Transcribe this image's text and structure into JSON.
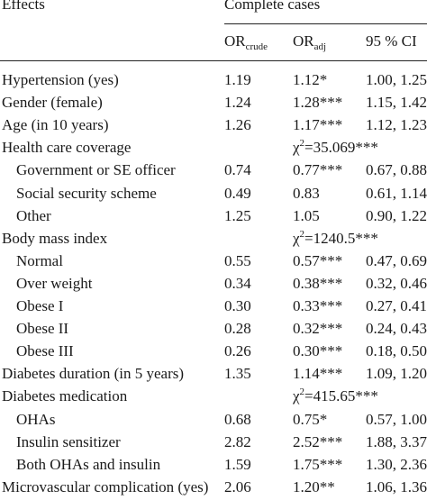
{
  "header": {
    "effects": "Effects",
    "complete_cases": "Complete cases",
    "or_crude_main": "OR",
    "or_crude_sub": "crude",
    "or_adj_main": "OR",
    "or_adj_sub": "adj",
    "ci": "95 % CI"
  },
  "rows": [
    {
      "label": "Hypertension (yes)",
      "indent": false,
      "crude": "1.19",
      "adj": "1.12*",
      "ci": "1.00, 1.25"
    },
    {
      "label": "Gender (female)",
      "indent": false,
      "crude": "1.24",
      "adj": "1.28***",
      "ci": "1.15, 1.42"
    },
    {
      "label": "Age (in 10 years)",
      "indent": false,
      "crude": "1.26",
      "adj": "1.17***",
      "ci": "1.12, 1.23"
    },
    {
      "label": "Health care coverage",
      "indent": false,
      "chi_pre": "χ",
      "chi_sup": "2",
      "chi_post": "=35.069***"
    },
    {
      "label": "Government or SE officer",
      "indent": true,
      "crude": "0.74",
      "adj": "0.77***",
      "ci": "0.67, 0.88"
    },
    {
      "label": "Social security scheme",
      "indent": true,
      "crude": "0.49",
      "adj": "0.83",
      "ci": "0.61, 1.14"
    },
    {
      "label": "Other",
      "indent": true,
      "crude": "1.25",
      "adj": "1.05",
      "ci": "0.90, 1.22"
    },
    {
      "label": "Body mass index",
      "indent": false,
      "chi_pre": "χ",
      "chi_sup": "2",
      "chi_post": "=1240.5***"
    },
    {
      "label": "Normal",
      "indent": true,
      "crude": "0.55",
      "adj": "0.57***",
      "ci": "0.47, 0.69"
    },
    {
      "label": "Over weight",
      "indent": true,
      "crude": "0.34",
      "adj": "0.38***",
      "ci": "0.32, 0.46"
    },
    {
      "label": "Obese I",
      "indent": true,
      "crude": "0.30",
      "adj": "0.33***",
      "ci": "0.27, 0.41"
    },
    {
      "label": "Obese II",
      "indent": true,
      "crude": "0.28",
      "adj": "0.32***",
      "ci": "0.24, 0.43"
    },
    {
      "label": "Obese III",
      "indent": true,
      "crude": "0.26",
      "adj": "0.30***",
      "ci": "0.18, 0.50"
    },
    {
      "label": "Diabetes duration (in 5 years)",
      "indent": false,
      "crude": "1.35",
      "adj": "1.14***",
      "ci": "1.09, 1.20"
    },
    {
      "label": "Diabetes medication",
      "indent": false,
      "chi_pre": "χ",
      "chi_sup": "2",
      "chi_post": "=415.65***"
    },
    {
      "label": "OHAs",
      "indent": true,
      "crude": "0.68",
      "adj": "0.75*",
      "ci": "0.57, 1.00"
    },
    {
      "label": "Insulin sensitizer",
      "indent": true,
      "crude": "2.82",
      "adj": "2.52***",
      "ci": "1.88, 3.37"
    },
    {
      "label": "Both OHAs and insulin",
      "indent": true,
      "crude": "1.59",
      "adj": "1.75***",
      "ci": "1.30, 2.36"
    },
    {
      "label": "Microvascular complication (yes)",
      "indent": false,
      "crude": "2.06",
      "adj": "1.20**",
      "ci": "1.06, 1.36"
    }
  ]
}
